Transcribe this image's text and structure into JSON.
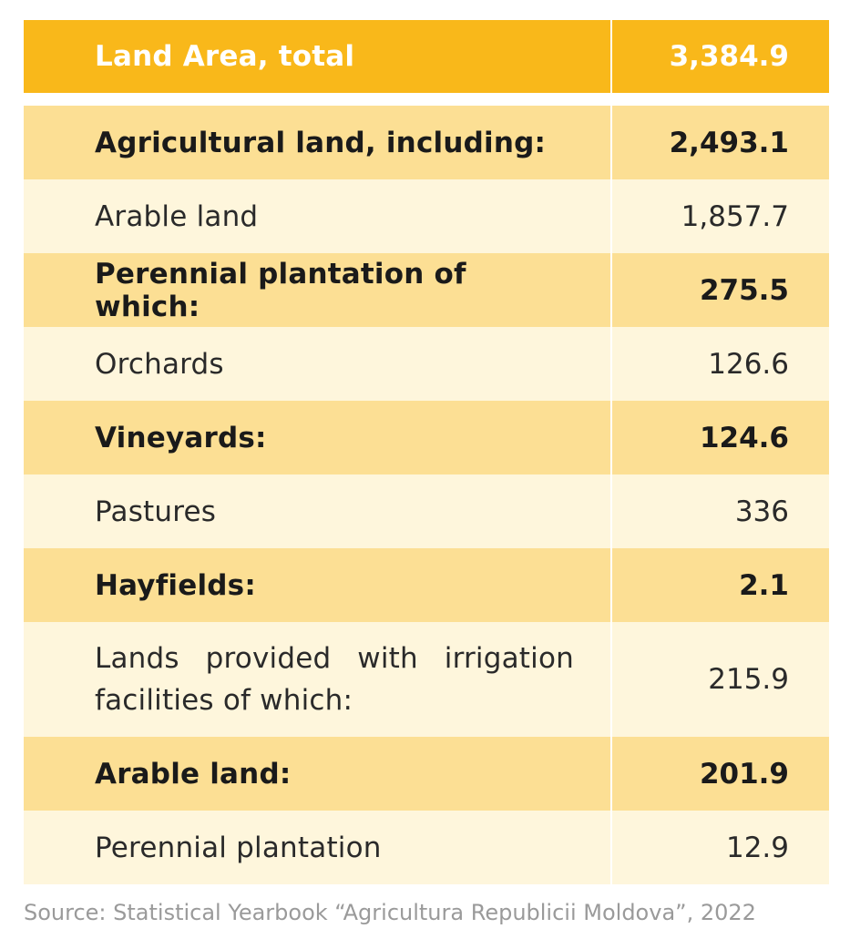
{
  "table": {
    "header": {
      "label": "Land Area, total",
      "value": "3,384.9"
    },
    "rows": [
      {
        "label": "Agricultural land, including:",
        "value": "2,493.1",
        "bold": true
      },
      {
        "label": "Arable land",
        "value": "1,857.7",
        "bold": false
      },
      {
        "label": "Perennial plantation of which:",
        "value": "275.5",
        "bold": true
      },
      {
        "label": "Orchards",
        "value": "126.6",
        "bold": false
      },
      {
        "label": "Vineyards:",
        "value": "124.6",
        "bold": true
      },
      {
        "label": "Pastures",
        "value": "336",
        "bold": false
      },
      {
        "label": "Hayfields:",
        "value": "2.1",
        "bold": true
      },
      {
        "label": "Lands provided with irrigation facilities of which:",
        "value": "215.9",
        "bold": false
      },
      {
        "label": "Arable land:",
        "value": "201.9",
        "bold": true
      },
      {
        "label": "Perennial plantation",
        "value": "12.9",
        "bold": false
      }
    ]
  },
  "source": "Source: Statistical Yearbook “Agricultura Republicii Moldova”, 2022",
  "colors": {
    "header_bg": "#f9b81a",
    "bold_row_bg": "#fcdf94",
    "plain_row_bg": "#fef6dc",
    "header_text": "#ffffff",
    "source_text": "#9a9a9a"
  }
}
